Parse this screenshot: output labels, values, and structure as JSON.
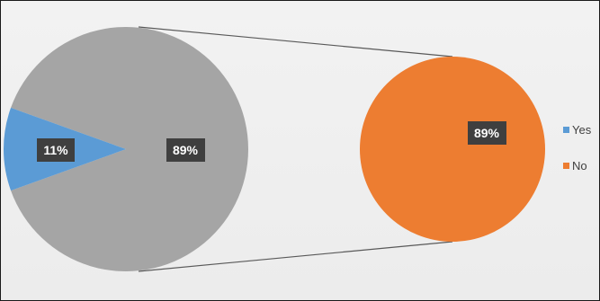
{
  "chart_data": {
    "type": "pie-of-pie",
    "categories": [
      "Yes",
      "No"
    ],
    "values": [
      11,
      89
    ],
    "data_labels": [
      "11%",
      "89%"
    ],
    "secondary_label": "89%",
    "colors": {
      "Yes": "#5b9bd5",
      "No": "#ed7d31",
      "other": "#a5a5a5",
      "connector": "#595959",
      "label_bg": "#3f3f3f"
    },
    "legend": {
      "position": "right",
      "items": [
        {
          "label": "Yes",
          "color": "#5b9bd5"
        },
        {
          "label": "No",
          "color": "#ed7d31"
        }
      ]
    }
  }
}
